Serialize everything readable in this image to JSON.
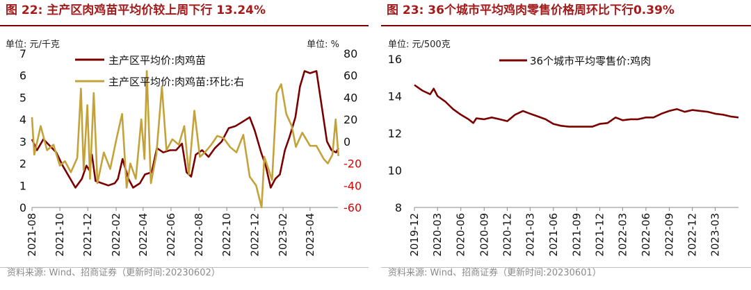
{
  "panel1": {
    "title": "图 22:  主产区肉鸡苗平均价较上周下行 13.24%",
    "source": "资料来源:  Wind、招商证券（更新时间:20230602）"
  },
  "panel2": {
    "title": "图 23:  36个城市平均鸡肉零售价格周环比下行0.39%",
    "source": "资料来源:  Wind、招商证券（更新时间:20230601）"
  },
  "chart_data": [
    {
      "type": "line",
      "unit_left": "单位: 元/千克",
      "unit_right": "单位: %",
      "ylim_left": [
        0,
        7
      ],
      "ylim_right": [
        -60,
        80
      ],
      "yticks_left": [
        "0",
        "1",
        "2",
        "3",
        "4",
        "5",
        "6",
        "7"
      ],
      "yticks_right": [
        "-60",
        "-40",
        "-20",
        "0",
        "20",
        "40",
        "60",
        "80"
      ],
      "xticks": [
        "2021-08",
        "2021-10",
        "2021-12",
        "2022-02",
        "2022-04",
        "2022-06",
        "2022-08",
        "2022-10",
        "2022-12",
        "2023-02",
        "2023-04"
      ],
      "x_range": [
        "2021-08",
        "2023-06"
      ],
      "series": [
        {
          "name": "主产区平均价:肉鸡苗",
          "axis": "left",
          "color": "#7a0000",
          "points": [
            [
              "2021-08",
              3.1
            ],
            [
              "2021-08-12",
              2.6
            ],
            [
              "2021-08-26",
              3.1
            ],
            [
              "2021-09-09",
              2.8
            ],
            [
              "2021-09-23",
              2.5
            ],
            [
              "2021-10-07",
              1.9
            ],
            [
              "2021-10-21",
              1.4
            ],
            [
              "2021-11-04",
              0.9
            ],
            [
              "2021-11-18",
              1.3
            ],
            [
              "2021-11-28",
              1.9
            ],
            [
              "2021-12-04",
              1.7
            ],
            [
              "2021-12-10",
              2.4
            ],
            [
              "2021-12-18",
              1.2
            ],
            [
              "2022-01-01",
              1.1
            ],
            [
              "2022-01-15",
              1.0
            ],
            [
              "2022-01-29",
              1.1
            ],
            [
              "2022-02-05",
              1.3
            ],
            [
              "2022-02-15",
              2.2
            ],
            [
              "2022-02-28",
              1.3
            ],
            [
              "2022-03-10",
              0.9
            ],
            [
              "2022-03-25",
              1.1
            ],
            [
              "2022-04-05",
              1.5
            ],
            [
              "2022-04-20",
              1.6
            ],
            [
              "2022-05-01",
              2.7
            ],
            [
              "2022-05-15",
              2.5
            ],
            [
              "2022-05-30",
              2.6
            ],
            [
              "2022-06-12",
              2.6
            ],
            [
              "2022-06-25",
              2.9
            ],
            [
              "2022-07-05",
              1.6
            ],
            [
              "2022-07-15",
              1.4
            ],
            [
              "2022-07-25",
              2.4
            ],
            [
              "2022-08-08",
              2.6
            ],
            [
              "2022-08-22",
              2.3
            ],
            [
              "2022-09-05",
              2.7
            ],
            [
              "2022-09-20",
              3.0
            ],
            [
              "2022-10-05",
              3.6
            ],
            [
              "2022-10-20",
              3.7
            ],
            [
              "2022-11-05",
              3.9
            ],
            [
              "2022-11-20",
              4.1
            ],
            [
              "2022-12-01",
              3.5
            ],
            [
              "2022-12-15",
              2.5
            ],
            [
              "2022-12-25",
              1.9
            ],
            [
              "2023-01-05",
              0.9
            ],
            [
              "2023-01-15",
              1.3
            ],
            [
              "2023-01-25",
              1.5
            ],
            [
              "2023-02-05",
              2.6
            ],
            [
              "2023-02-15",
              3.2
            ],
            [
              "2023-02-28",
              4.1
            ],
            [
              "2023-03-10",
              5.5
            ],
            [
              "2023-03-20",
              6.2
            ],
            [
              "2023-04-01",
              6.1
            ],
            [
              "2023-04-15",
              6.2
            ],
            [
              "2023-04-28",
              4.4
            ],
            [
              "2023-05-08",
              3.0
            ],
            [
              "2023-05-18",
              2.6
            ],
            [
              "2023-05-28",
              2.5
            ],
            [
              "2023-06-02",
              2.7
            ]
          ]
        },
        {
          "name": "主产区平均价:肉鸡苗:环比:右",
          "axis": "right",
          "color": "#c4a23a",
          "points": [
            [
              "2021-08",
              22
            ],
            [
              "2021-08-06",
              -12
            ],
            [
              "2021-08-20",
              14
            ],
            [
              "2021-09-03",
              -8
            ],
            [
              "2021-09-17",
              -3
            ],
            [
              "2021-10-01",
              -22
            ],
            [
              "2021-10-12",
              -18
            ],
            [
              "2021-10-25",
              -28
            ],
            [
              "2021-11-08",
              -15
            ],
            [
              "2021-11-16",
              48
            ],
            [
              "2021-11-22",
              -26
            ],
            [
              "2021-11-30",
              33
            ],
            [
              "2021-12-06",
              -34
            ],
            [
              "2021-12-14",
              44
            ],
            [
              "2021-12-22",
              -38
            ],
            [
              "2022-01-05",
              -10
            ],
            [
              "2022-01-19",
              -25
            ],
            [
              "2022-02-02",
              3
            ],
            [
              "2022-02-14",
              25
            ],
            [
              "2022-02-24",
              -42
            ],
            [
              "2022-03-04",
              -20
            ],
            [
              "2022-03-16",
              -34
            ],
            [
              "2022-03-28",
              20
            ],
            [
              "2022-04-04",
              -16
            ],
            [
              "2022-04-09",
              64
            ],
            [
              "2022-04-18",
              -38
            ],
            [
              "2022-04-30",
              -12
            ],
            [
              "2022-05-12",
              50
            ],
            [
              "2022-05-22",
              -8
            ],
            [
              "2022-06-04",
              2
            ],
            [
              "2022-06-18",
              -3
            ],
            [
              "2022-06-30",
              14
            ],
            [
              "2022-07-10",
              -30
            ],
            [
              "2022-07-22",
              28
            ],
            [
              "2022-08-03",
              -14
            ],
            [
              "2022-08-14",
              -10
            ],
            [
              "2022-08-28",
              -3
            ],
            [
              "2022-09-10",
              5
            ],
            [
              "2022-09-24",
              3
            ],
            [
              "2022-10-08",
              -5
            ],
            [
              "2022-10-22",
              -10
            ],
            [
              "2022-11-06",
              6
            ],
            [
              "2022-11-20",
              -32
            ],
            [
              "2022-12-04",
              -40
            ],
            [
              "2022-12-16",
              -60
            ],
            [
              "2022-12-22",
              -14
            ],
            [
              "2023-01-08",
              -35
            ],
            [
              "2023-01-18",
              44
            ],
            [
              "2023-01-28",
              52
            ],
            [
              "2023-02-08",
              25
            ],
            [
              "2023-02-20",
              14
            ],
            [
              "2023-03-01",
              -5
            ],
            [
              "2023-03-15",
              8
            ],
            [
              "2023-04-01",
              -4
            ],
            [
              "2023-04-15",
              -4
            ],
            [
              "2023-05-01",
              -16
            ],
            [
              "2023-05-10",
              -20
            ],
            [
              "2023-05-20",
              -12
            ],
            [
              "2023-05-27",
              20
            ],
            [
              "2023-06-02",
              -13.24
            ]
          ]
        }
      ]
    },
    {
      "type": "line",
      "unit_left": "单位: 元/500克",
      "ylim": [
        8,
        16
      ],
      "yticks": [
        "8",
        "10",
        "12",
        "14",
        "16"
      ],
      "xticks": [
        "2019-12",
        "2020-03",
        "2020-06",
        "2020-09",
        "2020-12",
        "2021-03",
        "2021-06",
        "2021-09",
        "2021-12",
        "2022-03",
        "2022-06",
        "2022-09",
        "2022-12",
        "2023-03"
      ],
      "x_range": [
        "2019-12",
        "2023-06"
      ],
      "series": [
        {
          "name": "36个城市平均零售价:鸡肉",
          "axis": "left",
          "color": "#7a0000",
          "points": [
            [
              "2019-12",
              14.6
            ],
            [
              "2020-01",
              14.3
            ],
            [
              "2020-02",
              14.1
            ],
            [
              "2020-02-15",
              14.4
            ],
            [
              "2020-03",
              14.0
            ],
            [
              "2020-04",
              13.7
            ],
            [
              "2020-05",
              13.3
            ],
            [
              "2020-06",
              13.0
            ],
            [
              "2020-07",
              12.75
            ],
            [
              "2020-07-20",
              12.55
            ],
            [
              "2020-08",
              12.8
            ],
            [
              "2020-09",
              12.75
            ],
            [
              "2020-10",
              12.85
            ],
            [
              "2020-11",
              12.75
            ],
            [
              "2020-12",
              12.65
            ],
            [
              "2021-01",
              13.0
            ],
            [
              "2021-02",
              13.2
            ],
            [
              "2021-03",
              13.05
            ],
            [
              "2021-04",
              12.9
            ],
            [
              "2021-05",
              12.75
            ],
            [
              "2021-06",
              12.5
            ],
            [
              "2021-07",
              12.4
            ],
            [
              "2021-08",
              12.35
            ],
            [
              "2021-09",
              12.35
            ],
            [
              "2021-10",
              12.35
            ],
            [
              "2021-11",
              12.35
            ],
            [
              "2021-12",
              12.5
            ],
            [
              "2022-01",
              12.55
            ],
            [
              "2022-02",
              12.85
            ],
            [
              "2022-03",
              12.7
            ],
            [
              "2022-04",
              12.75
            ],
            [
              "2022-05",
              12.75
            ],
            [
              "2022-06",
              12.85
            ],
            [
              "2022-07",
              12.85
            ],
            [
              "2022-08",
              13.05
            ],
            [
              "2022-09",
              13.2
            ],
            [
              "2022-10",
              13.3
            ],
            [
              "2022-11",
              13.15
            ],
            [
              "2022-12",
              13.25
            ],
            [
              "2023-01",
              13.2
            ],
            [
              "2023-02",
              13.15
            ],
            [
              "2023-03",
              13.05
            ],
            [
              "2023-04",
              13.0
            ],
            [
              "2023-05",
              12.9
            ],
            [
              "2023-06",
              12.85
            ]
          ]
        }
      ]
    }
  ]
}
